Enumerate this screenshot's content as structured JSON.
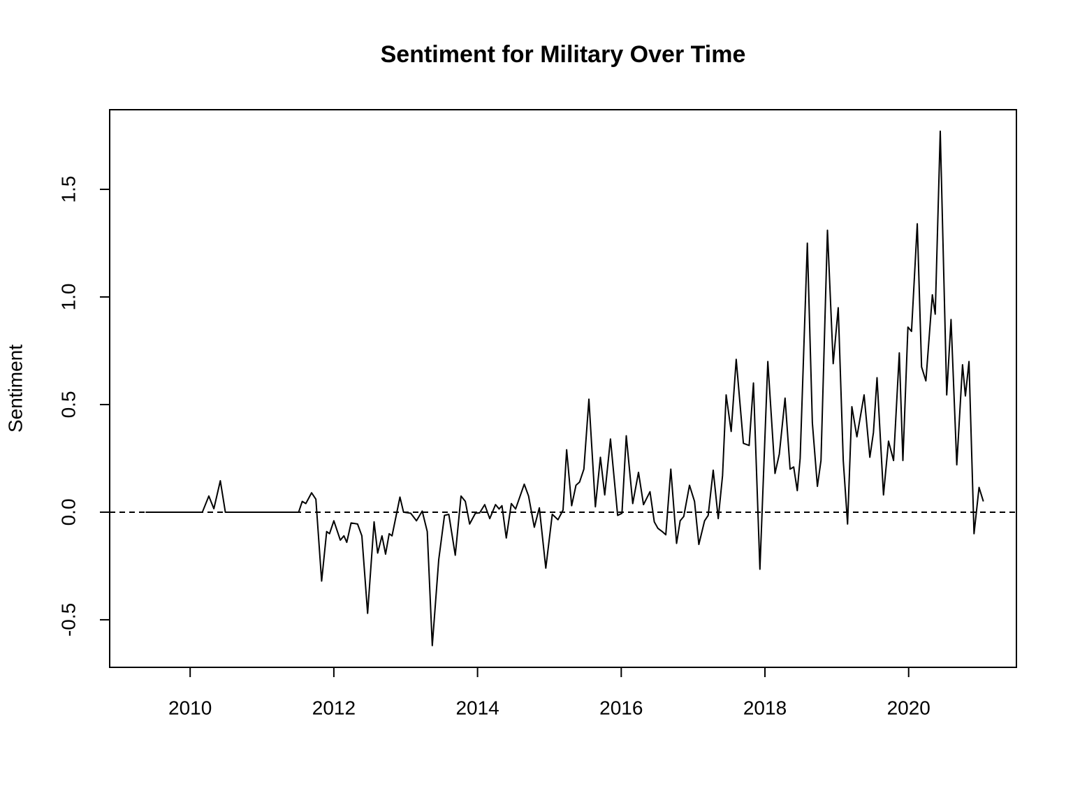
{
  "chart_data": {
    "type": "line",
    "title": "Sentiment for Military Over Time",
    "y_label": "Sentiment",
    "x": [
      2009.38,
      2010.17,
      2010.26,
      2010.33,
      2010.42,
      2010.49,
      2011.51,
      2011.56,
      2011.61,
      2011.69,
      2011.75,
      2011.83,
      2011.9,
      2011.94,
      2012.0,
      2012.09,
      2012.14,
      2012.18,
      2012.24,
      2012.33,
      2012.39,
      2012.47,
      2012.56,
      2012.61,
      2012.67,
      2012.72,
      2012.77,
      2012.81,
      2012.92,
      2012.97,
      2013.07,
      2013.15,
      2013.23,
      2013.3,
      2013.37,
      2013.46,
      2013.54,
      2013.6,
      2013.69,
      2013.77,
      2013.83,
      2013.89,
      2013.97,
      2014.03,
      2014.1,
      2014.17,
      2014.25,
      2014.3,
      2014.34,
      2014.4,
      2014.47,
      2014.53,
      2014.65,
      2014.71,
      2014.79,
      2014.86,
      2014.95,
      2015.04,
      2015.12,
      2015.19,
      2015.24,
      2015.31,
      2015.37,
      2015.42,
      2015.48,
      2015.55,
      2015.64,
      2015.71,
      2015.77,
      2015.85,
      2015.95,
      2016.01,
      2016.07,
      2016.16,
      2016.24,
      2016.31,
      2016.4,
      2016.46,
      2016.51,
      2016.57,
      2016.62,
      2016.69,
      2016.77,
      2016.82,
      2016.87,
      2016.95,
      2017.02,
      2017.08,
      2017.16,
      2017.21,
      2017.28,
      2017.35,
      2017.41,
      2017.46,
      2017.53,
      2017.6,
      2017.7,
      2017.78,
      2017.84,
      2017.93,
      2018.04,
      2018.14,
      2018.2,
      2018.28,
      2018.35,
      2018.4,
      2018.45,
      2018.49,
      2018.59,
      2018.66,
      2018.73,
      2018.78,
      2018.87,
      2018.95,
      2019.02,
      2019.09,
      2019.15,
      2019.21,
      2019.28,
      2019.38,
      2019.46,
      2019.51,
      2019.56,
      2019.65,
      2019.72,
      2019.79,
      2019.87,
      2019.92,
      2019.99,
      2020.04,
      2020.12,
      2020.18,
      2020.24,
      2020.33,
      2020.37,
      2020.44,
      2020.53,
      2020.59,
      2020.67,
      2020.75,
      2020.79,
      2020.84,
      2020.91,
      2020.98,
      2021.04
    ],
    "series": [
      {
        "color": "#000000",
        "values": [
          0,
          0,
          0.075,
          0.016,
          0.146,
          0,
          0,
          0.05,
          0.04,
          0.09,
          0.06,
          -0.32,
          -0.09,
          -0.1,
          -0.04,
          -0.13,
          -0.11,
          -0.14,
          -0.05,
          -0.055,
          -0.11,
          -0.47,
          -0.045,
          -0.19,
          -0.11,
          -0.195,
          -0.1,
          -0.11,
          0.07,
          0,
          -0.005,
          -0.04,
          0.005,
          -0.09,
          -0.62,
          -0.22,
          -0.015,
          -0.01,
          -0.2,
          0.075,
          0.05,
          -0.055,
          -0.005,
          -0.003,
          0.035,
          -0.03,
          0.035,
          0.015,
          0.03,
          -0.12,
          0.04,
          0.015,
          0.13,
          0.075,
          -0.07,
          0.02,
          -0.26,
          -0.01,
          -0.035,
          0.01,
          0.29,
          0.03,
          0.125,
          0.14,
          0.2,
          0.525,
          0.025,
          0.255,
          0.08,
          0.34,
          -0.015,
          -0.005,
          0.355,
          0.04,
          0.185,
          0.035,
          0.095,
          -0.045,
          -0.075,
          -0.09,
          -0.105,
          0.2,
          -0.145,
          -0.04,
          -0.02,
          0.125,
          0.05,
          -0.15,
          -0.04,
          -0.015,
          0.195,
          -0.03,
          0.17,
          0.545,
          0.375,
          0.71,
          0.32,
          0.31,
          0.6,
          -0.265,
          0.7,
          0.18,
          0.27,
          0.53,
          0.2,
          0.21,
          0.1,
          0.25,
          1.25,
          0.415,
          0.12,
          0.24,
          1.31,
          0.69,
          0.95,
          0.24,
          -0.055,
          0.49,
          0.35,
          0.545,
          0.255,
          0.37,
          0.625,
          0.08,
          0.33,
          0.24,
          0.74,
          0.24,
          0.86,
          0.84,
          1.34,
          0.675,
          0.61,
          1.01,
          0.92,
          1.77,
          0.545,
          0.895,
          0.22,
          0.685,
          0.54,
          0.7,
          -0.1,
          0.115,
          0.05
        ]
      }
    ],
    "hline": 0,
    "xlim": [
      2008.88,
      2021.5
    ],
    "ylim": [
      -0.721,
      1.87
    ],
    "xticks": [
      2010,
      2012,
      2014,
      2016,
      2018,
      2020
    ],
    "yticks": [
      -0.5,
      {
        "value": 0,
        "label": "0.0"
      },
      0.5,
      {
        "value": 1,
        "label": "1.0"
      },
      1.5
    ]
  }
}
